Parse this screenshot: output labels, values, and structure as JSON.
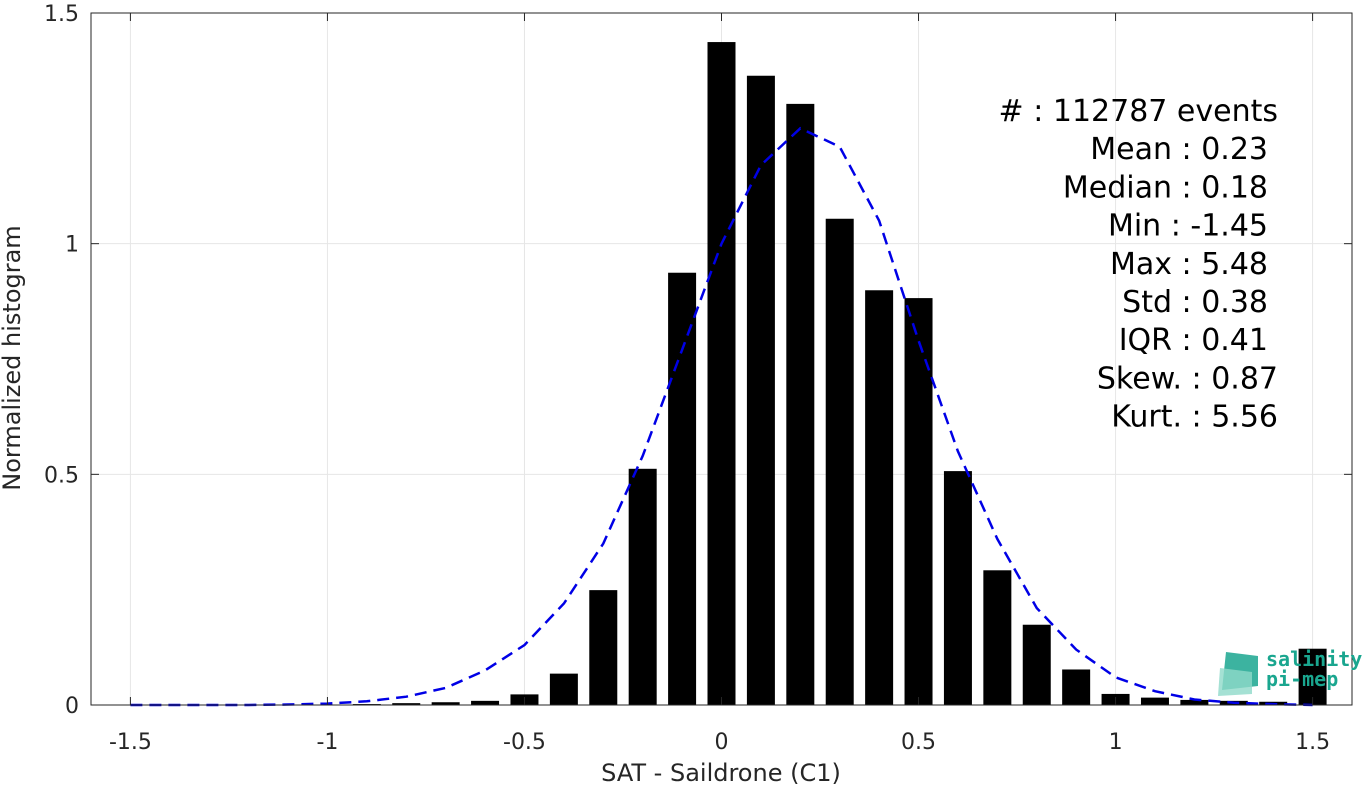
{
  "chart_data": {
    "type": "bar",
    "title": "",
    "xlabel": "SAT - Saildrone (C1)",
    "ylabel": "Normalized histogram",
    "xlim": [
      -1.6,
      1.6
    ],
    "ylim": [
      0,
      1.5
    ],
    "x_ticks": [
      -1.5,
      -1,
      -0.5,
      0,
      0.5,
      1,
      1.5
    ],
    "x_tick_labels": [
      "-1.5",
      "-1",
      "-0.5",
      "0",
      "0.5",
      "1",
      "1.5"
    ],
    "y_ticks": [
      0,
      0.5,
      1,
      1.5
    ],
    "y_tick_labels": [
      "0",
      "0.5",
      "1",
      "1.5"
    ],
    "grid": true,
    "bin_width": 0.1,
    "bars": {
      "x": [
        -1.5,
        -1.4,
        -1.3,
        -1.2,
        -1.1,
        -1.0,
        -0.9,
        -0.8,
        -0.7,
        -0.6,
        -0.5,
        -0.4,
        -0.3,
        -0.2,
        -0.1,
        0.0,
        0.1,
        0.2,
        0.3,
        0.4,
        0.5,
        0.6,
        0.7,
        0.8,
        0.9,
        1.0,
        1.1,
        1.2,
        1.3,
        1.4,
        1.5
      ],
      "values": [
        0.0,
        0.0,
        0.0,
        0.0,
        0.001,
        0.001,
        0.002,
        0.004,
        0.006,
        0.009,
        0.023,
        0.068,
        0.249,
        0.512,
        0.937,
        1.437,
        1.364,
        1.303,
        1.054,
        0.899,
        0.882,
        0.507,
        0.292,
        0.174,
        0.077,
        0.024,
        0.016,
        0.011,
        0.009,
        0.007,
        0.122
      ],
      "color": "#000000"
    },
    "fit_curve": {
      "style": "dashed",
      "color": "#0000e6",
      "x": [
        -1.5,
        -1.4,
        -1.3,
        -1.2,
        -1.1,
        -1.0,
        -0.9,
        -0.8,
        -0.7,
        -0.6,
        -0.5,
        -0.4,
        -0.3,
        -0.2,
        -0.1,
        0.0,
        0.1,
        0.2,
        0.3,
        0.4,
        0.5,
        0.6,
        0.7,
        0.8,
        0.9,
        1.0,
        1.1,
        1.2,
        1.3,
        1.4,
        1.5
      ],
      "y": [
        0.0,
        0.0,
        0.0,
        0.0,
        0.001,
        0.003,
        0.008,
        0.018,
        0.037,
        0.075,
        0.13,
        0.22,
        0.35,
        0.54,
        0.77,
        1.0,
        1.17,
        1.25,
        1.21,
        1.05,
        0.79,
        0.55,
        0.36,
        0.21,
        0.12,
        0.06,
        0.03,
        0.012,
        0.005,
        0.002,
        0.0
      ]
    },
    "stats": [
      {
        "label": "#  : 112787 events"
      },
      {
        "label": "Mean : 0.23"
      },
      {
        "label": "Median : 0.18"
      },
      {
        "label": "Min : -1.45"
      },
      {
        "label": "Max : 5.48"
      },
      {
        "label": "Std : 0.38"
      },
      {
        "label": "IQR : 0.41"
      },
      {
        "label": "Skew. : 0.87"
      },
      {
        "label": "Kurt. : 5.56"
      }
    ]
  },
  "logo": {
    "line1": "salinity",
    "line2": "pi-mep",
    "color": "#1aa68f"
  }
}
